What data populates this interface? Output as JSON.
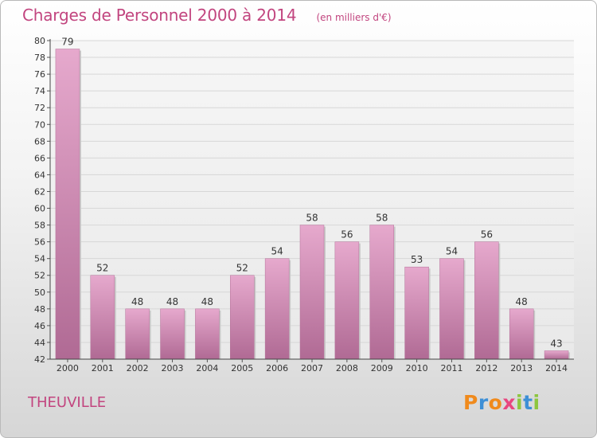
{
  "header": {
    "title": "Charges de Personnel 2000 à 2014",
    "subtitle": "(en milliers d'€)"
  },
  "footer": {
    "town": "THEUVILLE",
    "logo": "Proxiti"
  },
  "colors": {
    "accent": "#c2457f",
    "bar_top": "#e6a9cd",
    "bar_bottom": "#b06a94",
    "logo_letters": [
      "#f08a1c",
      "#3d8fd6",
      "#f08a1c",
      "#e8467f",
      "#8dc63f",
      "#3d8fd6",
      "#8dc63f"
    ]
  },
  "chart_data": {
    "type": "bar",
    "categories": [
      "2000",
      "2001",
      "2002",
      "2003",
      "2004",
      "2005",
      "2006",
      "2007",
      "2008",
      "2009",
      "2010",
      "2011",
      "2012",
      "2013",
      "2014"
    ],
    "values": [
      79,
      52,
      48,
      48,
      48,
      52,
      54,
      58,
      56,
      58,
      53,
      54,
      56,
      48,
      43
    ],
    "data_labels": [
      "79",
      "52",
      "48",
      "48",
      "48",
      "52",
      "54",
      "58",
      "56",
      "58",
      "53",
      "54",
      "56",
      "48",
      "43"
    ],
    "title": "Charges de Personnel 2000 à 2014",
    "subtitle": "(en milliers d'€)",
    "xlabel": "",
    "ylabel": "",
    "ylim": [
      42,
      80
    ],
    "yticks": [
      42,
      44,
      46,
      48,
      50,
      52,
      54,
      56,
      58,
      60,
      62,
      64,
      66,
      68,
      70,
      72,
      74,
      76,
      78,
      80
    ],
    "grid": true
  }
}
